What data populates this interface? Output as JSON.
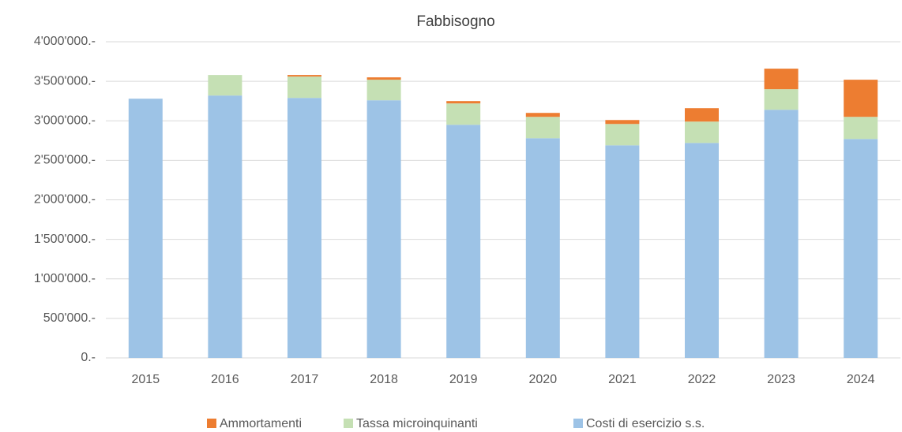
{
  "chart_data": {
    "type": "stacked_bar",
    "title": "Fabbisogno",
    "categories": [
      "2015",
      "2016",
      "2017",
      "2018",
      "2019",
      "2020",
      "2021",
      "2022",
      "2023",
      "2024"
    ],
    "series": [
      {
        "name": "Ammortamenti",
        "color": "#ed7d31",
        "values": [
          0,
          0,
          20000,
          30000,
          30000,
          50000,
          50000,
          170000,
          260000,
          470000
        ]
      },
      {
        "name": "Tassa microinquinanti",
        "color": "#c5e0b4",
        "values": [
          0,
          260000,
          270000,
          260000,
          270000,
          270000,
          270000,
          270000,
          260000,
          280000
        ]
      },
      {
        "name": "Costi di esercizio s.s.",
        "color": "#9dc3e6",
        "values": [
          3280000,
          3320000,
          3290000,
          3260000,
          2950000,
          2780000,
          2690000,
          2720000,
          3140000,
          2770000
        ]
      }
    ],
    "ylim": [
      0,
      4000000
    ],
    "yticks": [
      {
        "value": 0,
        "label": "0.-"
      },
      {
        "value": 500000,
        "label": "500'000.-"
      },
      {
        "value": 1000000,
        "label": "1'000'000.-"
      },
      {
        "value": 1500000,
        "label": "1'500'000.-"
      },
      {
        "value": 2000000,
        "label": "2'000'000.-"
      },
      {
        "value": 2500000,
        "label": "2'500'000.-"
      },
      {
        "value": 3000000,
        "label": "3'000'000.-"
      },
      {
        "value": 3500000,
        "label": "3'500'000.-"
      },
      {
        "value": 4000000,
        "label": "4'000'000.-"
      }
    ],
    "grid": true,
    "legend": "bottom"
  }
}
